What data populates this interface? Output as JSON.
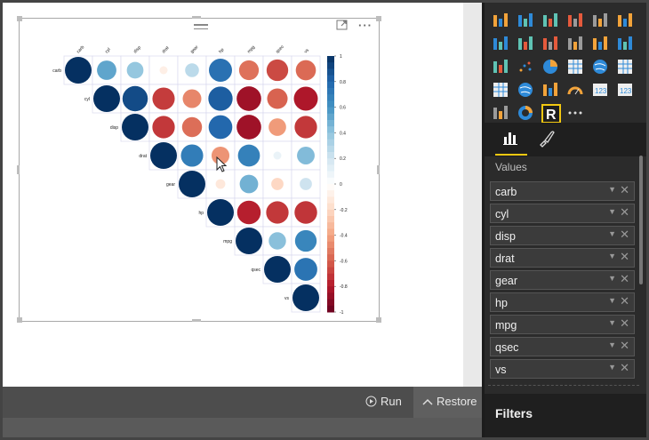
{
  "visual": {
    "chart_data": {
      "type": "heatmap",
      "variables": [
        "carb",
        "cyl",
        "disp",
        "drat",
        "gear",
        "hp",
        "mpg",
        "qsec",
        "vs"
      ],
      "legend_ticks": [
        "1",
        "0.8",
        "0.6",
        "0.4",
        "0.2",
        "0",
        "-0.2",
        "-0.4",
        "-0.6",
        "-0.8",
        "-1"
      ],
      "legend_range": [
        -1,
        1
      ],
      "matrix": [
        [
          1,
          0.53,
          0.39,
          -0.09,
          0.27,
          0.75,
          -0.55,
          -0.66,
          -0.57
        ],
        [
          0.53,
          1,
          0.9,
          -0.7,
          -0.49,
          0.83,
          -0.85,
          -0.59,
          -0.81
        ],
        [
          0.39,
          0.9,
          1,
          -0.71,
          -0.56,
          0.79,
          -0.85,
          -0.43,
          -0.71
        ],
        [
          -0.09,
          -0.7,
          -0.71,
          1,
          0.7,
          -0.45,
          0.68,
          0.09,
          0.44
        ],
        [
          0.27,
          -0.49,
          -0.56,
          0.7,
          1,
          -0.13,
          0.48,
          -0.21,
          0.21
        ],
        [
          0.75,
          0.83,
          0.79,
          -0.45,
          -0.13,
          1,
          -0.78,
          -0.71,
          -0.72
        ],
        [
          -0.55,
          -0.85,
          -0.85,
          0.68,
          0.48,
          -0.78,
          1,
          0.42,
          0.66
        ],
        [
          -0.66,
          -0.59,
          -0.43,
          0.09,
          -0.21,
          -0.71,
          0.42,
          1,
          0.74
        ],
        [
          -0.57,
          -0.81,
          -0.71,
          0.44,
          0.21,
          -0.72,
          0.66,
          0.74,
          1
        ]
      ]
    }
  },
  "bottombar": {
    "run_label": "Run",
    "restore_label": "Restore"
  },
  "panel": {
    "visual_icons": [
      "stacked-bar-icon",
      "stacked-column-icon",
      "clustered-bar-icon",
      "clustered-column-icon",
      "100-bar-icon",
      "100-column-icon",
      "line-icon",
      "area-icon",
      "stacked-area-icon",
      "line-column-icon",
      "line-stacked-column-icon",
      "ribbon-icon",
      "waterfall-icon",
      "scatter-icon",
      "pie-icon",
      "treemap-icon",
      "map-icon",
      "table-icon",
      "matrix-icon",
      "filled-map-icon",
      "funnel-icon",
      "gauge-icon",
      "multirow-card-icon",
      "card-icon",
      "slicer-icon",
      "donut-icon",
      "r-visual-icon",
      "more-icon"
    ],
    "values_label": "Values",
    "fields": [
      "carb",
      "cyl",
      "disp",
      "drat",
      "gear",
      "hp",
      "mpg",
      "qsec",
      "vs"
    ],
    "filters_label": "Filters"
  }
}
